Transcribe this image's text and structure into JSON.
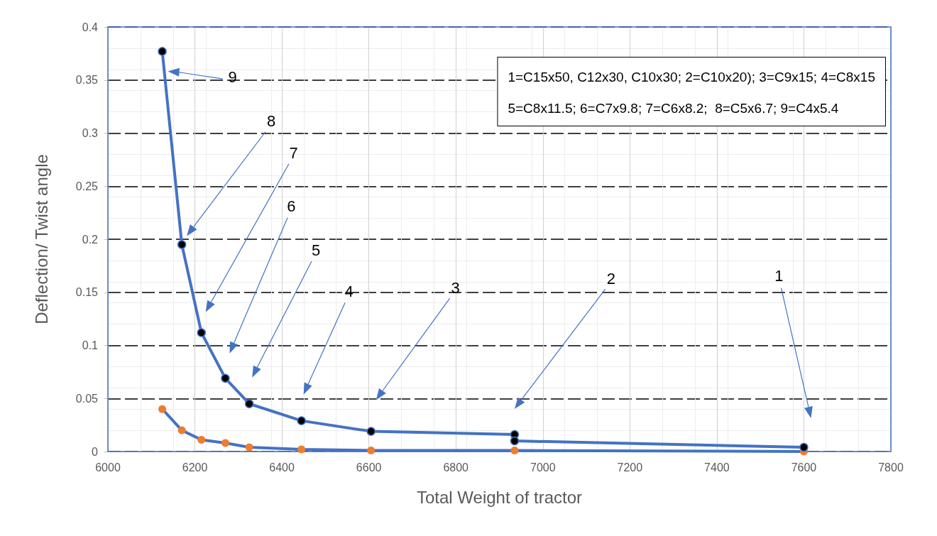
{
  "chart_data": {
    "type": "line",
    "xlabel": "Total Weight of tractor",
    "ylabel": "Deflection/ Twist angle",
    "xlim": [
      6000,
      7800
    ],
    "xticks": [
      6000,
      6200,
      6400,
      6600,
      6800,
      7000,
      7200,
      7400,
      7600,
      7800
    ],
    "ylim": [
      0,
      0.4
    ],
    "yticks": [
      0,
      0.05,
      0.1,
      0.15,
      0.2,
      0.25,
      0.3,
      0.35,
      0.4
    ],
    "grid": true,
    "marker": "circle",
    "line_style": "solid",
    "series": [
      {
        "color": "#4472c4",
        "x": [
          6125,
          6170,
          6215,
          6270,
          6325,
          6445,
          6605,
          6935,
          6935,
          7600
        ],
        "values": [
          0.377,
          0.195,
          0.112,
          0.069,
          0.045,
          0.029,
          0.019,
          0.016,
          0.01,
          0.004
        ]
      },
      {
        "color": "#ed7d31",
        "x": [
          6125,
          6170,
          6215,
          6270,
          6325,
          6445,
          6605,
          6935,
          7600
        ],
        "values": [
          0.04,
          0.02,
          0.011,
          0.008,
          0.004,
          0.002,
          0.001,
          0.001,
          0
        ]
      }
    ],
    "annotations": [
      "1=C15x50, C12x30, C10x30; 2=C10x20); 3=C9x15; 4=C8x15",
      "5=C8x11.5; 6=C7x9.8; 7=C6x8.2;  8=C5x6.7; 9=C4x5.4",
      "9",
      "8",
      "7",
      "6",
      "5",
      "4",
      "3",
      "2",
      "1"
    ]
  }
}
